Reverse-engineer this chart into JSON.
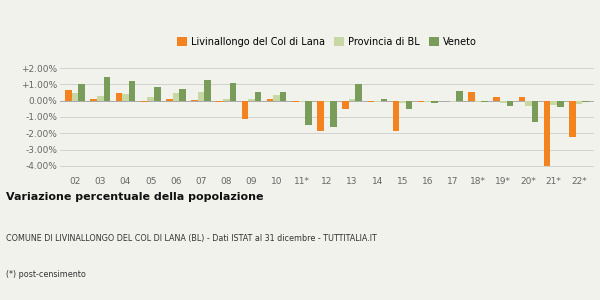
{
  "categories": [
    "02",
    "03",
    "04",
    "05",
    "06",
    "07",
    "08",
    "09",
    "10",
    "11*",
    "12",
    "13",
    "14",
    "15",
    "16",
    "17",
    "18*",
    "19*",
    "20*",
    "21*",
    "22*"
  ],
  "livinallongo": [
    0.65,
    0.1,
    0.45,
    -0.08,
    0.12,
    0.03,
    -0.05,
    -1.1,
    0.12,
    -0.05,
    -1.85,
    -0.5,
    -0.1,
    -1.85,
    -0.05,
    0.0,
    0.55,
    0.2,
    0.25,
    -4.0,
    -2.2
  ],
  "provincia_bl": [
    0.45,
    0.3,
    0.4,
    0.25,
    0.5,
    0.55,
    0.13,
    0.13,
    0.35,
    -0.05,
    -0.08,
    0.13,
    -0.08,
    -0.13,
    -0.05,
    -0.05,
    -0.05,
    -0.13,
    -0.35,
    -0.28,
    -0.18
  ],
  "veneto": [
    1.0,
    1.45,
    1.2,
    0.82,
    0.72,
    1.25,
    1.1,
    0.55,
    0.55,
    -1.5,
    -1.6,
    1.0,
    0.12,
    -0.5,
    -0.12,
    0.6,
    -0.05,
    -0.3,
    -1.3,
    -0.38,
    -0.1
  ],
  "color_livinallongo": "#f4831f",
  "color_provincia": "#c8d8a4",
  "color_veneto": "#7a9c5a",
  "title_bold": "Variazione percentuale della popolazione",
  "subtitle": "COMUNE DI LIVINALLONGO DEL COL DI LANA (BL) - Dati ISTAT al 31 dicembre - TUTTITALIA.IT",
  "footnote": "(*) post-censimento",
  "legend_labels": [
    "Livinallongo del Col di Lana",
    "Provincia di BL",
    "Veneto"
  ],
  "ylim": [
    -4.5,
    2.5
  ],
  "yticks": [
    -4.0,
    -3.0,
    -2.0,
    -1.0,
    0.0,
    1.0,
    2.0
  ],
  "bg_color": "#f2f2ed"
}
